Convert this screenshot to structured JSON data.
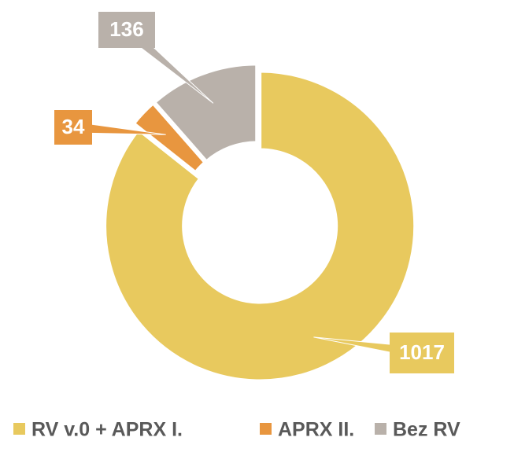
{
  "chart_data": {
    "type": "pie",
    "donut": true,
    "categories": [
      "RV v.0 + APRX I.",
      "APRX II.",
      "Bez RV"
    ],
    "values": [
      1017,
      34,
      136
    ],
    "colors": [
      "#E8C95E",
      "#E8963F",
      "#B9B1AA"
    ],
    "legend": "bottom"
  }
}
